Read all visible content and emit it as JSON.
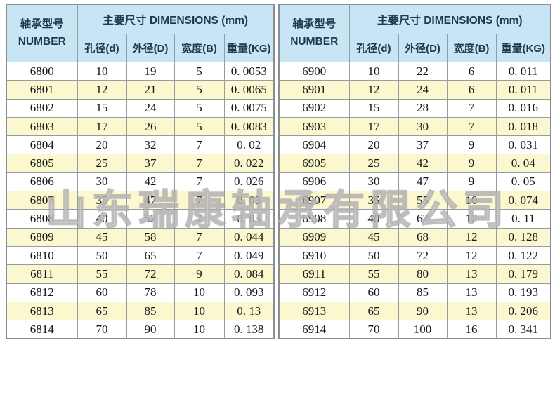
{
  "watermark": "山东瑞康轴承有限公司",
  "colors": {
    "header_bg": "#c7e5f4",
    "row_alt_bg": "#fbf8d0",
    "border": "#979c9f",
    "header_text": "#21394e",
    "cell_text": "#161616"
  },
  "tables": [
    {
      "series": "6800",
      "header": {
        "number_cn": "轴承型号",
        "number_en": "NUMBER",
        "dimensions": "主要尺寸 DIMENSIONS (mm)",
        "columns": [
          "孔径(d)",
          "外径(D)",
          "宽度(B)",
          "重量(KG)"
        ]
      },
      "rows": [
        [
          "6800",
          "10",
          "19",
          "5",
          "0. 0053"
        ],
        [
          "6801",
          "12",
          "21",
          "5",
          "0. 0065"
        ],
        [
          "6802",
          "15",
          "24",
          "5",
          "0. 0075"
        ],
        [
          "6803",
          "17",
          "26",
          "5",
          "0. 0083"
        ],
        [
          "6804",
          "20",
          "32",
          "7",
          "0. 02"
        ],
        [
          "6805",
          "25",
          "37",
          "7",
          "0. 022"
        ],
        [
          "6806",
          "30",
          "42",
          "7",
          "0. 026"
        ],
        [
          "6807",
          "35",
          "47",
          "7",
          "0. 03"
        ],
        [
          "6808",
          "40",
          "52",
          "7",
          "0. 03"
        ],
        [
          "6809",
          "45",
          "58",
          "7",
          "0. 044"
        ],
        [
          "6810",
          "50",
          "65",
          "7",
          "0. 049"
        ],
        [
          "6811",
          "55",
          "72",
          "9",
          "0. 084"
        ],
        [
          "6812",
          "60",
          "78",
          "10",
          "0. 093"
        ],
        [
          "6813",
          "65",
          "85",
          "10",
          "0. 13"
        ],
        [
          "6814",
          "70",
          "90",
          "10",
          "0. 138"
        ]
      ]
    },
    {
      "series": "6900",
      "header": {
        "number_cn": "轴承型号",
        "number_en": "NUMBER",
        "dimensions": "主要尺寸 DIMENSIONS (mm)",
        "columns": [
          "孔径(d)",
          "外径(D)",
          "宽度(B)",
          "重量(KG)"
        ]
      },
      "rows": [
        [
          "6900",
          "10",
          "22",
          "6",
          "0. 011"
        ],
        [
          "6901",
          "12",
          "24",
          "6",
          "0. 011"
        ],
        [
          "6902",
          "15",
          "28",
          "7",
          "0. 016"
        ],
        [
          "6903",
          "17",
          "30",
          "7",
          "0. 018"
        ],
        [
          "6904",
          "20",
          "37",
          "9",
          "0. 031"
        ],
        [
          "6905",
          "25",
          "42",
          "9",
          "0. 04"
        ],
        [
          "6906",
          "30",
          "47",
          "9",
          "0. 05"
        ],
        [
          "6907",
          "35",
          "55",
          "10",
          "0. 074"
        ],
        [
          "6908",
          "40",
          "62",
          "12",
          "0. 11"
        ],
        [
          "6909",
          "45",
          "68",
          "12",
          "0. 128"
        ],
        [
          "6910",
          "50",
          "72",
          "12",
          "0. 122"
        ],
        [
          "6911",
          "55",
          "80",
          "13",
          "0. 179"
        ],
        [
          "6912",
          "60",
          "85",
          "13",
          "0. 193"
        ],
        [
          "6913",
          "65",
          "90",
          "13",
          "0. 206"
        ],
        [
          "6914",
          "70",
          "100",
          "16",
          "0. 341"
        ]
      ]
    }
  ]
}
